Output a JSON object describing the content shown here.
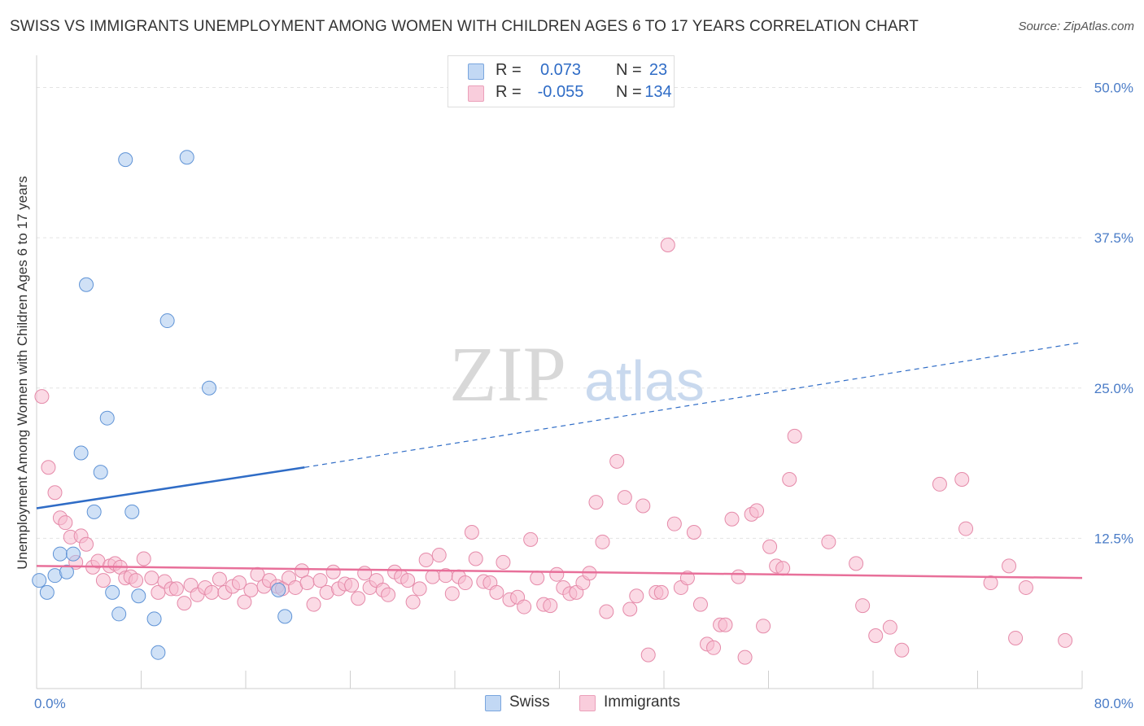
{
  "chart_data": {
    "type": "scatter",
    "title": "SWISS VS IMMIGRANTS UNEMPLOYMENT AMONG WOMEN WITH CHILDREN AGES 6 TO 17 YEARS CORRELATION CHART",
    "source": "Source: ZipAtlas.com",
    "ylabel": "Unemployment Among Women with Children Ages 6 to 17 years",
    "xlim": [
      0,
      80
    ],
    "ylim": [
      0,
      52
    ],
    "x_tick_labels": [
      {
        "v": 0,
        "label": "0.0%"
      },
      {
        "v": 80,
        "label": "80.0%"
      }
    ],
    "y_tick_labels": [
      {
        "v": 12.5,
        "label": "12.5%"
      },
      {
        "v": 25,
        "label": "25.0%"
      },
      {
        "v": 37.5,
        "label": "37.5%"
      },
      {
        "v": 50,
        "label": "50.0%"
      }
    ],
    "grid": true,
    "legend_position": "top-center",
    "watermark": {
      "zip": "ZIP",
      "atlas": "atlas"
    },
    "series": [
      {
        "name": "Swiss",
        "color": "#a9c8ef",
        "stroke": "#5f93d6",
        "line_color": "#2f6cc6",
        "R": "0.073",
        "N": "23",
        "trend": {
          "x0": 0,
          "y0": 15.0,
          "x1": 20.5,
          "y1": 18.4,
          "dash_x1": 80,
          "dash_y1": 28.8
        },
        "points": [
          [
            0.2,
            9.0
          ],
          [
            0.8,
            8.0
          ],
          [
            1.4,
            9.4
          ],
          [
            1.8,
            11.2
          ],
          [
            2.3,
            9.7
          ],
          [
            2.8,
            11.2
          ],
          [
            3.4,
            19.6
          ],
          [
            3.8,
            33.6
          ],
          [
            4.4,
            14.7
          ],
          [
            4.9,
            18.0
          ],
          [
            5.4,
            22.5
          ],
          [
            5.8,
            8.0
          ],
          [
            6.3,
            6.2
          ],
          [
            6.8,
            44.0
          ],
          [
            7.3,
            14.7
          ],
          [
            7.8,
            7.7
          ],
          [
            9.0,
            5.8
          ],
          [
            9.3,
            3.0
          ],
          [
            10.0,
            30.6
          ],
          [
            11.5,
            44.2
          ],
          [
            13.2,
            25.0
          ],
          [
            18.5,
            8.2
          ],
          [
            19.0,
            6.0
          ]
        ]
      },
      {
        "name": "Immigrants",
        "color": "#f7bcd0",
        "stroke": "#e58aa9",
        "line_color": "#e8709a",
        "R": "-0.055",
        "N": "134",
        "trend": {
          "x0": 0,
          "y0": 10.2,
          "x1": 80,
          "y1": 9.2
        },
        "points": [
          [
            0.4,
            24.3
          ],
          [
            0.9,
            18.4
          ],
          [
            1.4,
            16.3
          ],
          [
            1.8,
            14.2
          ],
          [
            2.2,
            13.8
          ],
          [
            2.6,
            12.6
          ],
          [
            3.0,
            10.5
          ],
          [
            3.4,
            12.7
          ],
          [
            3.8,
            12.0
          ],
          [
            4.3,
            10.1
          ],
          [
            4.7,
            10.6
          ],
          [
            5.1,
            9.0
          ],
          [
            5.6,
            10.2
          ],
          [
            6.0,
            10.4
          ],
          [
            6.4,
            10.1
          ],
          [
            6.8,
            9.2
          ],
          [
            7.2,
            9.3
          ],
          [
            7.6,
            9.0
          ],
          [
            8.2,
            10.8
          ],
          [
            8.8,
            9.2
          ],
          [
            9.3,
            8.0
          ],
          [
            9.8,
            8.9
          ],
          [
            10.3,
            8.3
          ],
          [
            10.7,
            8.3
          ],
          [
            11.3,
            7.1
          ],
          [
            11.8,
            8.6
          ],
          [
            12.3,
            7.8
          ],
          [
            12.9,
            8.4
          ],
          [
            13.4,
            8.0
          ],
          [
            14.0,
            9.1
          ],
          [
            14.4,
            8.0
          ],
          [
            15.0,
            8.5
          ],
          [
            15.5,
            8.8
          ],
          [
            15.9,
            7.2
          ],
          [
            16.4,
            8.2
          ],
          [
            16.9,
            9.5
          ],
          [
            17.4,
            8.5
          ],
          [
            17.8,
            9.0
          ],
          [
            18.4,
            8.5
          ],
          [
            18.8,
            8.3
          ],
          [
            19.3,
            9.2
          ],
          [
            19.8,
            8.4
          ],
          [
            20.3,
            9.8
          ],
          [
            20.7,
            8.8
          ],
          [
            21.2,
            7.0
          ],
          [
            21.7,
            9.0
          ],
          [
            22.2,
            8.0
          ],
          [
            22.7,
            9.7
          ],
          [
            23.1,
            8.3
          ],
          [
            23.6,
            8.7
          ],
          [
            24.1,
            8.6
          ],
          [
            24.6,
            7.5
          ],
          [
            25.1,
            9.6
          ],
          [
            25.5,
            8.4
          ],
          [
            26.0,
            9.0
          ],
          [
            26.5,
            8.2
          ],
          [
            26.9,
            7.8
          ],
          [
            27.4,
            9.7
          ],
          [
            27.9,
            9.3
          ],
          [
            28.4,
            9.0
          ],
          [
            28.8,
            7.2
          ],
          [
            29.3,
            8.3
          ],
          [
            29.8,
            10.7
          ],
          [
            30.3,
            9.3
          ],
          [
            30.8,
            11.1
          ],
          [
            31.3,
            9.4
          ],
          [
            31.8,
            7.9
          ],
          [
            32.3,
            9.3
          ],
          [
            32.8,
            8.8
          ],
          [
            33.3,
            13.0
          ],
          [
            33.6,
            10.8
          ],
          [
            34.2,
            8.9
          ],
          [
            34.7,
            8.8
          ],
          [
            35.2,
            8.0
          ],
          [
            35.7,
            10.5
          ],
          [
            36.2,
            7.4
          ],
          [
            36.8,
            7.6
          ],
          [
            37.3,
            6.8
          ],
          [
            37.8,
            12.4
          ],
          [
            38.3,
            9.2
          ],
          [
            38.8,
            7.0
          ],
          [
            39.3,
            6.9
          ],
          [
            39.8,
            9.5
          ],
          [
            40.3,
            8.4
          ],
          [
            40.8,
            7.9
          ],
          [
            41.3,
            8.0
          ],
          [
            41.8,
            8.8
          ],
          [
            42.3,
            9.6
          ],
          [
            42.8,
            15.5
          ],
          [
            43.3,
            12.2
          ],
          [
            43.6,
            6.4
          ],
          [
            44.4,
            18.9
          ],
          [
            45.0,
            15.9
          ],
          [
            45.4,
            6.6
          ],
          [
            45.9,
            7.7
          ],
          [
            46.4,
            15.2
          ],
          [
            46.8,
            2.8
          ],
          [
            47.4,
            8.0
          ],
          [
            47.8,
            8.0
          ],
          [
            48.3,
            36.9
          ],
          [
            48.8,
            13.7
          ],
          [
            49.3,
            8.4
          ],
          [
            49.8,
            9.2
          ],
          [
            50.3,
            13.0
          ],
          [
            50.8,
            7.0
          ],
          [
            51.3,
            3.7
          ],
          [
            51.8,
            3.4
          ],
          [
            52.3,
            5.3
          ],
          [
            52.7,
            5.3
          ],
          [
            53.2,
            14.1
          ],
          [
            53.7,
            9.3
          ],
          [
            54.2,
            2.6
          ],
          [
            54.7,
            14.5
          ],
          [
            55.1,
            14.8
          ],
          [
            55.6,
            5.2
          ],
          [
            56.1,
            11.8
          ],
          [
            56.6,
            10.2
          ],
          [
            57.1,
            10.0
          ],
          [
            57.6,
            17.4
          ],
          [
            58.0,
            21.0
          ],
          [
            60.6,
            12.2
          ],
          [
            62.7,
            10.4
          ],
          [
            63.2,
            6.9
          ],
          [
            64.2,
            4.4
          ],
          [
            65.3,
            5.1
          ],
          [
            66.2,
            3.2
          ],
          [
            69.1,
            17.0
          ],
          [
            70.8,
            17.4
          ],
          [
            71.1,
            13.3
          ],
          [
            73.0,
            8.8
          ],
          [
            74.4,
            10.2
          ],
          [
            74.9,
            4.2
          ],
          [
            75.7,
            8.4
          ],
          [
            78.7,
            4.0
          ]
        ]
      }
    ]
  },
  "legend": {
    "r_label": "R =",
    "n_label": "N ="
  }
}
